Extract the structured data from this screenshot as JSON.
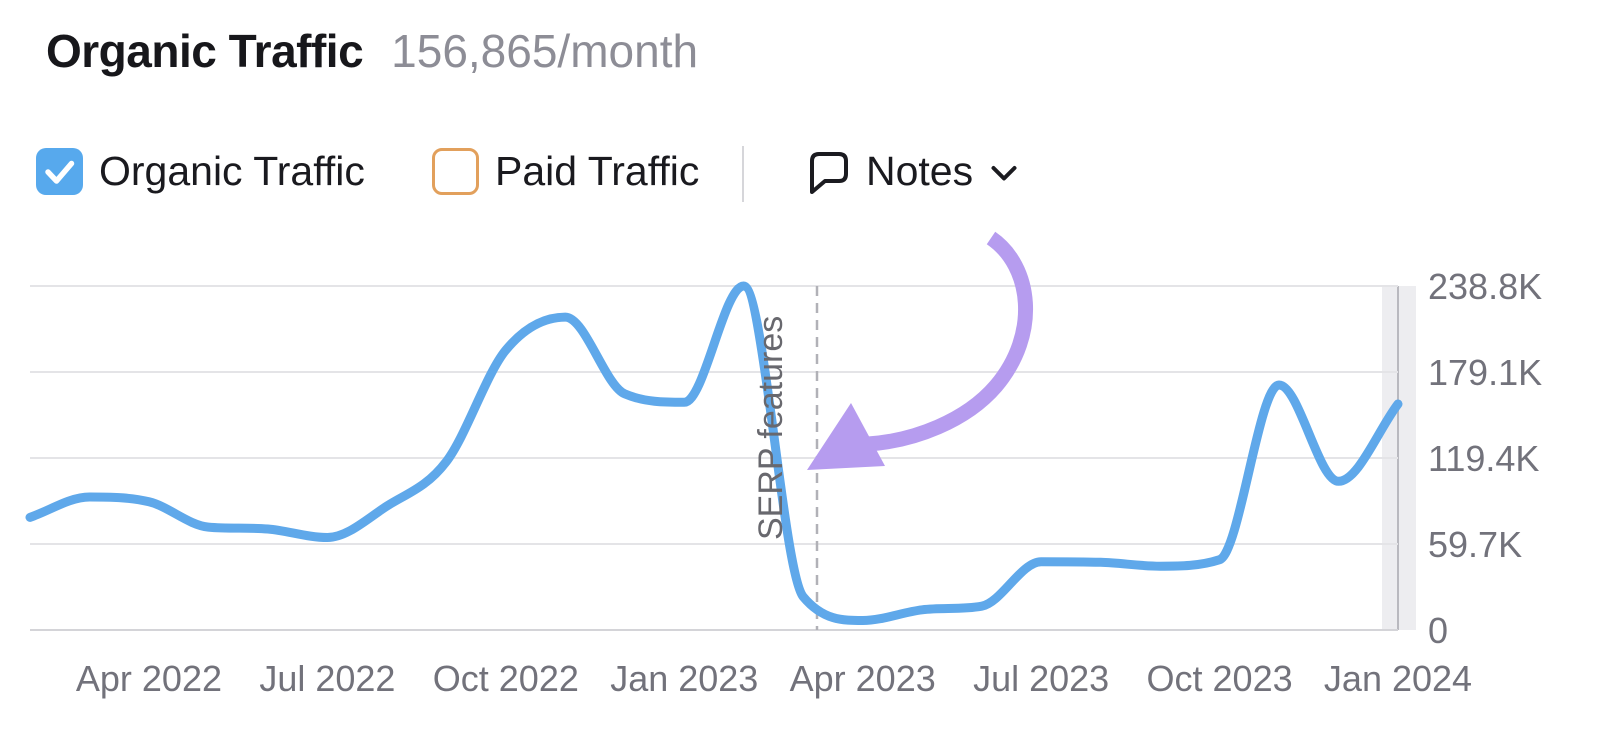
{
  "header": {
    "title": "Organic Traffic",
    "value": "156,865/month"
  },
  "legend": {
    "organic": {
      "label": "Organic Traffic",
      "checked": true,
      "color": "#57a9ed"
    },
    "paid": {
      "label": "Paid Traffic",
      "checked": false,
      "color": "#e2a05c"
    },
    "notes": {
      "label": "Notes"
    }
  },
  "chart_data": {
    "type": "line",
    "grid": true,
    "y_axis_side": "right",
    "ylim": [
      0,
      238800
    ],
    "y_ticks": [
      {
        "label": "238.8K",
        "value": 238800
      },
      {
        "label": "179.1K",
        "value": 179100
      },
      {
        "label": "119.4K",
        "value": 119400
      },
      {
        "label": "59.7K",
        "value": 59700
      },
      {
        "label": "0",
        "value": 0
      }
    ],
    "x_ticks": [
      "Apr 2022",
      "Jul 2022",
      "Oct 2022",
      "Jan 2023",
      "Apr 2023",
      "Jul 2023",
      "Oct 2023",
      "Jan 2024"
    ],
    "series": [
      {
        "name": "Organic Traffic",
        "color": "#5fa8ea",
        "points": [
          {
            "month": "Feb 2022",
            "value": 78200
          },
          {
            "month": "Mar 2022",
            "value": 92300
          },
          {
            "month": "Apr 2022",
            "value": 89000
          },
          {
            "month": "May 2022",
            "value": 71400
          },
          {
            "month": "Jun 2022",
            "value": 70100
          },
          {
            "month": "Jul 2022",
            "value": 64200
          },
          {
            "month": "Aug 2022",
            "value": 86000
          },
          {
            "month": "Sep 2022",
            "value": 116900
          },
          {
            "month": "Oct 2022",
            "value": 194300
          },
          {
            "month": "Nov 2022",
            "value": 217200
          },
          {
            "month": "Dec 2022",
            "value": 163900
          },
          {
            "month": "Jan 2023",
            "value": 158100
          },
          {
            "month": "Feb 2023",
            "value": 238800
          },
          {
            "month": "Mar 2023",
            "value": 23100
          },
          {
            "month": "Apr 2023",
            "value": 6600
          },
          {
            "month": "May 2023",
            "value": 14000
          },
          {
            "month": "Jun 2023",
            "value": 16500
          },
          {
            "month": "Jul 2023",
            "value": 47400
          },
          {
            "month": "Aug 2023",
            "value": 47000
          },
          {
            "month": "Sep 2023",
            "value": 44300
          },
          {
            "month": "Oct 2023",
            "value": 48800
          },
          {
            "month": "Nov 2023",
            "value": 170100
          },
          {
            "month": "Dec 2023",
            "value": 103200
          },
          {
            "month": "Jan 2024",
            "value": 156865
          }
        ]
      }
    ],
    "annotation": {
      "label": "SERP features",
      "month": "Mar 2023",
      "line_style": "dashed",
      "arrow_color": "#b69cef"
    },
    "highlight_band": {
      "position": "right-edge",
      "color": "#ededf0"
    }
  }
}
